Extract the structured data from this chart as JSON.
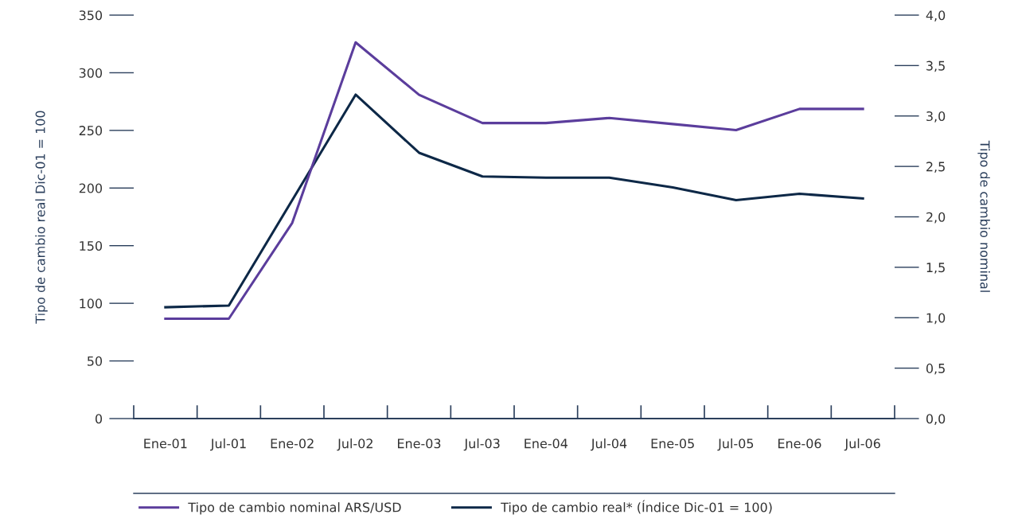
{
  "chart_data": {
    "type": "line",
    "categories": [
      "Ene-01",
      "Jul-01",
      "Ene-02",
      "Jul-02",
      "Ene-03",
      "Jul-03",
      "Ene-04",
      "Jul-04",
      "Ene-05",
      "Jul-05",
      "Ene-06",
      "Jul-06"
    ],
    "ylabel": "Tipo de cambio real Dic-01 = 100",
    "y2label": "Tipo de cambio nominal",
    "ylim": [
      0,
      350
    ],
    "yticks": [
      0,
      50,
      100,
      150,
      200,
      250,
      300,
      350
    ],
    "y2lim": [
      0,
      4
    ],
    "y2ticks": [
      {
        "value": 0,
        "label": "0,0"
      },
      {
        "value": 0.5,
        "label": "0,5"
      },
      {
        "value": 1,
        "label": "1,0"
      },
      {
        "value": 1.5,
        "label": "1,5"
      },
      {
        "value": 2,
        "label": "2,0"
      },
      {
        "value": 2.5,
        "label": "2,5"
      },
      {
        "value": 3,
        "label": "3,0"
      },
      {
        "value": 3.5,
        "label": "3,5"
      },
      {
        "value": 4,
        "label": "4,0"
      }
    ],
    "legend": "bottom",
    "grid": false,
    "series": [
      {
        "name": "Tipo de cambio nominal ARS/USD",
        "color": "#5b3d9c",
        "axis": "y2",
        "values": [
          0.99,
          0.99,
          1.94,
          3.73,
          3.21,
          2.93,
          2.93,
          2.98,
          2.92,
          2.86,
          3.07,
          3.07
        ]
      },
      {
        "name": "Tipo de cambio real* (Índice Dic-01 = 100)",
        "color": "#0d2847",
        "values": [
          96.6,
          98,
          189.5,
          281,
          230.6,
          210,
          209,
          209,
          200.5,
          189.5,
          195,
          191
        ]
      }
    ]
  }
}
